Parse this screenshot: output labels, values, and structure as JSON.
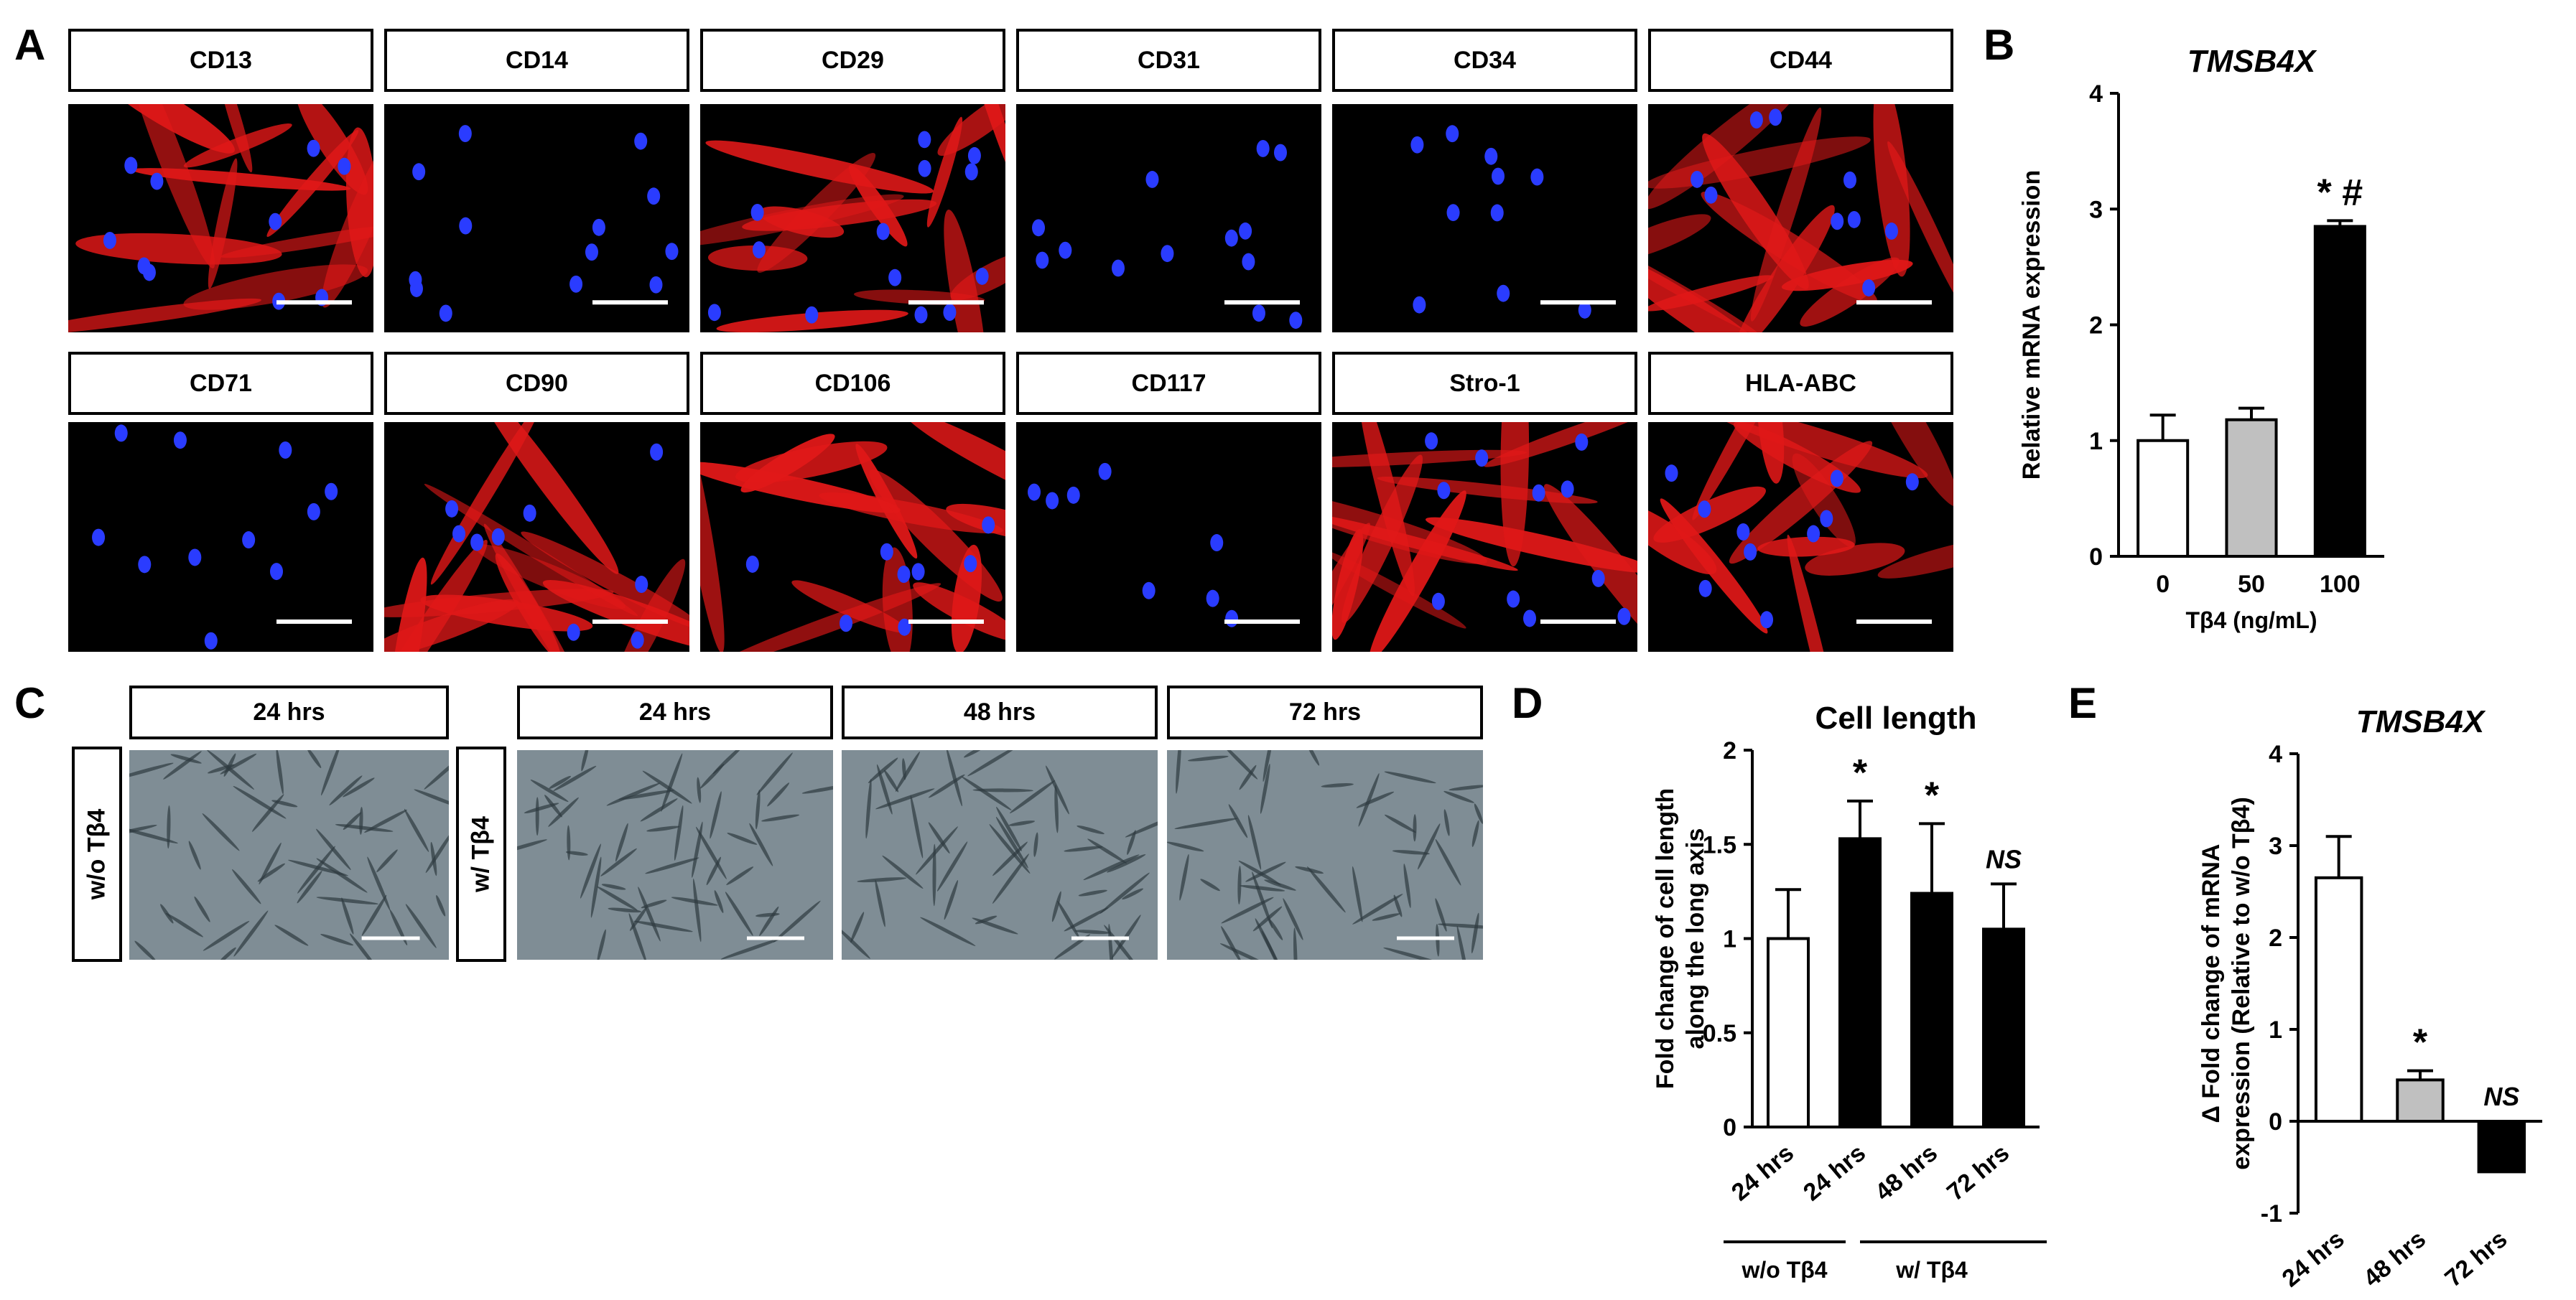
{
  "panel_letters": [
    "A",
    "B",
    "C",
    "D",
    "E"
  ],
  "panel_a": {
    "row1": [
      "CD13",
      "CD14",
      "CD29",
      "CD31",
      "CD34",
      "CD44"
    ],
    "row2": [
      "CD71",
      "CD90",
      "CD106",
      "CD117",
      "Stro-1",
      "HLA-ABC"
    ]
  },
  "panel_c": {
    "row_labels": {
      "without": "w/o Tβ4",
      "with": "w/ Tβ4"
    },
    "headers": [
      "24 hrs",
      "24 hrs",
      "48 hrs",
      "72 hrs"
    ]
  },
  "colors": {
    "stain_red": "#e01818",
    "nuclei_blue": "#2a3cff",
    "phase_gray": "#7f8d95",
    "bar_white": "#ffffff",
    "bar_gray": "#c0c0c0",
    "bar_black": "#000000"
  },
  "chart_data": [
    {
      "id": "B",
      "type": "bar",
      "title": "TMSB4X",
      "ylabel": "Relative mRNA expression",
      "xlabel": "Tβ4 (ng/mL)",
      "categories": [
        "0",
        "50",
        "100"
      ],
      "values": [
        1.0,
        1.18,
        2.85
      ],
      "errors": [
        0.22,
        0.1,
        0.05
      ],
      "bar_colors": [
        "#ffffff",
        "#c0c0c0",
        "#000000"
      ],
      "annotations": [
        "",
        "",
        "* #"
      ],
      "ylim": [
        0,
        4
      ],
      "yticks": [
        "0",
        "1",
        "2",
        "3",
        "4"
      ]
    },
    {
      "id": "D",
      "type": "bar",
      "title": "Cell length",
      "ylabel": "Fold change of cell length along the long axis",
      "categories": [
        "24 hrs",
        "24 hrs",
        "48 hrs",
        "72 hrs"
      ],
      "groups": [
        {
          "label": "w/o Tβ4"
        },
        {
          "label": "w/ Tβ4"
        }
      ],
      "values": [
        1.0,
        1.53,
        1.24,
        1.05
      ],
      "errors": [
        0.26,
        0.2,
        0.37,
        0.24
      ],
      "bar_colors": [
        "#ffffff",
        "#000000",
        "#000000",
        "#000000"
      ],
      "annotations": [
        "",
        "*",
        "*",
        "NS"
      ],
      "ylim": [
        0,
        2
      ],
      "yticks": [
        "0",
        "0.5",
        "1",
        "1.5",
        "2"
      ]
    },
    {
      "id": "E",
      "type": "bar",
      "title": "TMSB4X",
      "ylabel": "Δ Fold change of mRNA expression (Relative to w/o Tβ4)",
      "categories": [
        "24 hrs",
        "48 hrs",
        "72 hrs"
      ],
      "values": [
        2.65,
        0.45,
        -0.55
      ],
      "errors": [
        0.45,
        0.1,
        0.0
      ],
      "bar_colors": [
        "#ffffff",
        "#c0c0c0",
        "#000000"
      ],
      "annotations": [
        "",
        "*",
        "NS"
      ],
      "ylim": [
        -1,
        4
      ],
      "yticks": [
        "-1",
        "0",
        "1",
        "2",
        "3",
        "4"
      ]
    }
  ]
}
